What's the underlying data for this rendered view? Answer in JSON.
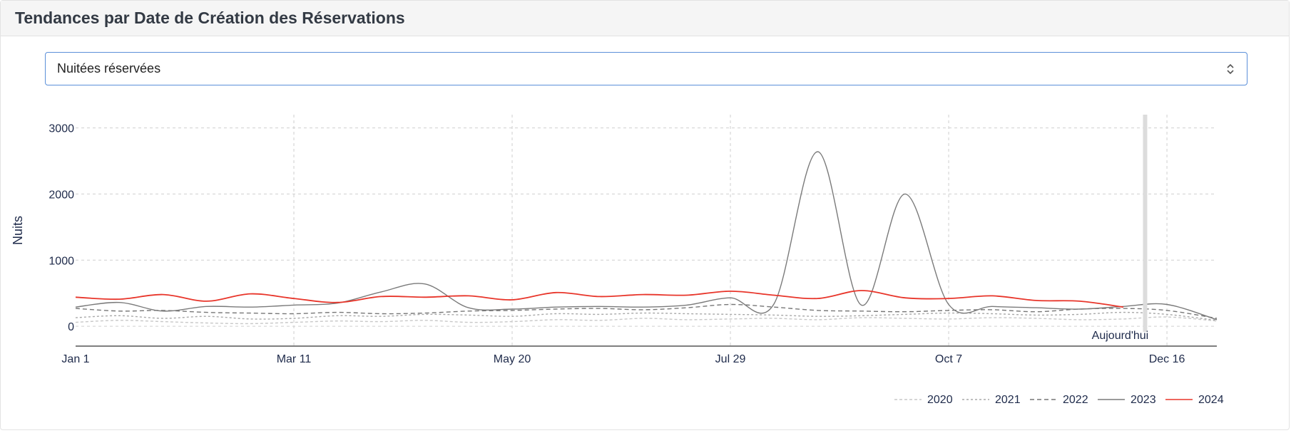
{
  "header": {
    "title": "Tendances par Date de Création des Réservations"
  },
  "metric_select": {
    "value": "Nuitées réservées"
  },
  "chart_data": {
    "type": "line",
    "title": "",
    "xlabel": "",
    "ylabel": "Nuits",
    "x_ticks": [
      "Jan 1",
      "Mar 11",
      "May 20",
      "Jul 29",
      "Oct 7",
      "Dec 16"
    ],
    "x_tick_days": [
      0,
      70,
      140,
      210,
      280,
      350
    ],
    "x_range_days": [
      0,
      366
    ],
    "y_ticks": [
      0,
      1000,
      2000,
      3000
    ],
    "y_tick_labels": [
      "0",
      "1000",
      "2000",
      "3000"
    ],
    "ylim": [
      -300,
      3200
    ],
    "grid": true,
    "legend_position": "bottom-right",
    "today_marker": {
      "label": "Aujourd'hui",
      "day": 343
    },
    "x": [
      0,
      14,
      28,
      42,
      56,
      70,
      84,
      98,
      112,
      126,
      140,
      154,
      168,
      182,
      196,
      210,
      224,
      238,
      252,
      266,
      280,
      294,
      308,
      322,
      336,
      350,
      366
    ],
    "series": [
      {
        "name": "2020",
        "color": "#c8c8c8",
        "dash": "4,3",
        "values": [
          60,
          90,
          70,
          50,
          40,
          60,
          80,
          70,
          90,
          60,
          70,
          100,
          90,
          120,
          100,
          110,
          120,
          100,
          130,
          120,
          110,
          130,
          120,
          100,
          110,
          140,
          80
        ]
      },
      {
        "name": "2021",
        "color": "#a8a8a8",
        "dash": "3,3",
        "values": [
          130,
          160,
          120,
          150,
          110,
          120,
          160,
          150,
          180,
          170,
          150,
          190,
          180,
          200,
          190,
          180,
          170,
          150,
          160,
          180,
          200,
          190,
          170,
          180,
          210,
          180,
          90
        ]
      },
      {
        "name": "2022",
        "color": "#777777",
        "dash": "6,4",
        "values": [
          270,
          230,
          240,
          210,
          200,
          190,
          210,
          190,
          200,
          230,
          240,
          260,
          270,
          250,
          280,
          330,
          290,
          240,
          230,
          220,
          240,
          250,
          220,
          260,
          270,
          240,
          120
        ]
      },
      {
        "name": "2023",
        "color": "#7a7a7a",
        "dash": "",
        "values": [
          290,
          360,
          230,
          300,
          290,
          320,
          350,
          520,
          640,
          280,
          260,
          290,
          300,
          290,
          320,
          430,
          340,
          2640,
          320,
          2000,
          330,
          300,
          280,
          260,
          300,
          330,
          100
        ]
      },
      {
        "name": "2024",
        "color": "#e8352a",
        "dash": "",
        "values": [
          440,
          410,
          480,
          380,
          490,
          420,
          360,
          450,
          440,
          460,
          400,
          510,
          450,
          480,
          470,
          530,
          470,
          420,
          540,
          430,
          420,
          460,
          390,
          380,
          290,
          null,
          null
        ]
      }
    ]
  }
}
